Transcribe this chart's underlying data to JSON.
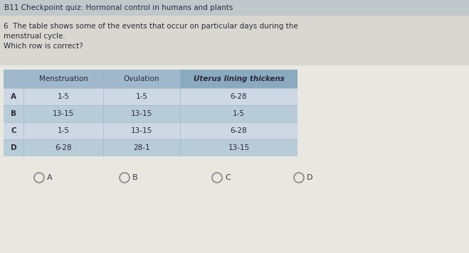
{
  "title_line1": "B11 Checkpoint quiz: Hormonal control in humans and plants",
  "question_line1": "6  The table shows some of the events that occur on particular days during the",
  "question_line2": "menstrual cycle.",
  "question_line3": "Which row is correct?",
  "header": [
    "",
    "Menstruation",
    "Ovulation",
    "Uterus lining thickens"
  ],
  "rows": [
    [
      "A",
      "1-5",
      "1-5",
      "6-28"
    ],
    [
      "B",
      "13-15",
      "13-15",
      "1-5"
    ],
    [
      "C",
      "1-5",
      "13-15",
      "6-28"
    ],
    [
      "D",
      "6-28",
      "28-1",
      "13-15"
    ]
  ],
  "options": [
    "A",
    "B",
    "C",
    "D"
  ],
  "page_bg": "#e8e8e0",
  "title_bg": "#c0c8cc",
  "question_bg": "#d8d8d0",
  "table_bg_light": "#cdd8e4",
  "table_bg_dark": "#b8ccd8",
  "header_bg": "#9fb8cc",
  "header_col4_bg": "#8aaabf",
  "circle_color": "#888888",
  "text_dark": "#2a2a3a",
  "text_medium": "#3a3a4a"
}
